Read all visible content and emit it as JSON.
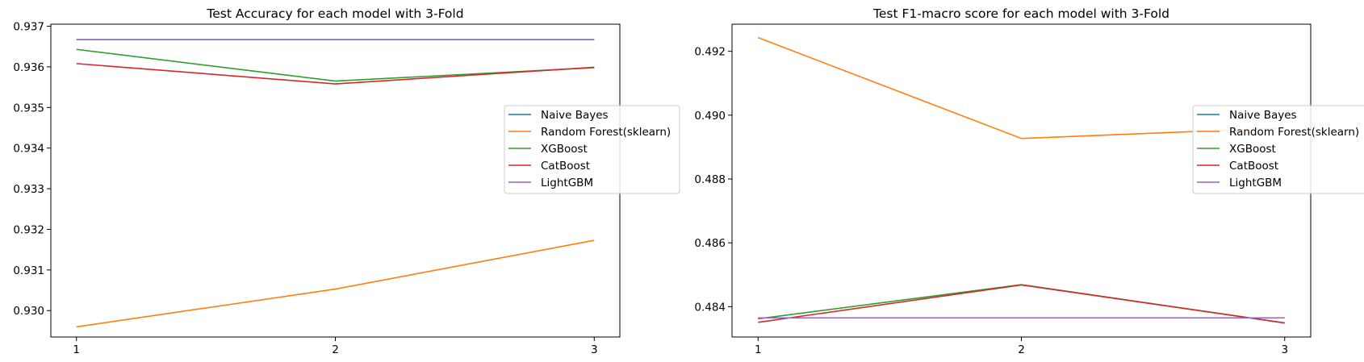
{
  "chart_data": [
    {
      "type": "line",
      "title": "Test Accuracy for each model with 3-Fold",
      "xlabel": "",
      "ylabel": "",
      "x": [
        1,
        2,
        3
      ],
      "xticks": [
        "1",
        "2",
        "3"
      ],
      "ylim": [
        0.92935,
        0.93705
      ],
      "yticks": [
        0.93,
        0.931,
        0.932,
        0.933,
        0.934,
        0.935,
        0.936,
        0.937
      ],
      "ytick_labels": [
        "0.930",
        "0.931",
        "0.932",
        "0.933",
        "0.934",
        "0.935",
        "0.936",
        "0.937"
      ],
      "legend_placement": "center-right (outside edge)",
      "grid": false,
      "series": [
        {
          "name": "Naive Bayes",
          "color": "#1f77b4",
          "values": [
            0.93667,
            0.93667,
            0.93667
          ]
        },
        {
          "name": "Random Forest(sklearn)",
          "color": "#ff7f0e",
          "values": [
            0.9296,
            0.93053,
            0.93173
          ]
        },
        {
          "name": "XGBoost",
          "color": "#2ca02c",
          "values": [
            0.93643,
            0.93565,
            0.93598
          ]
        },
        {
          "name": "CatBoost",
          "color": "#d62728",
          "values": [
            0.93608,
            0.93558,
            0.93599
          ]
        },
        {
          "name": "LightGBM",
          "color": "#9467bd",
          "values": [
            0.93667,
            0.93667,
            0.93667
          ]
        }
      ]
    },
    {
      "type": "line",
      "title": "Test F1-macro score for each model with 3-Fold",
      "xlabel": "",
      "ylabel": "",
      "x": [
        1,
        2,
        3
      ],
      "xticks": [
        "1",
        "2",
        "3"
      ],
      "ylim": [
        0.48305,
        0.49285
      ],
      "yticks": [
        0.484,
        0.486,
        0.488,
        0.49,
        0.492
      ],
      "ytick_labels": [
        "0.484",
        "0.486",
        "0.488",
        "0.490",
        "0.492"
      ],
      "legend_placement": "center-right (outside edge)",
      "grid": false,
      "series": [
        {
          "name": "Naive Bayes",
          "color": "#1f77b4",
          "values": [
            0.48365,
            0.48365,
            0.48365
          ]
        },
        {
          "name": "Random Forest(sklearn)",
          "color": "#ff7f0e",
          "values": [
            0.49243,
            0.48927,
            0.4896
          ]
        },
        {
          "name": "XGBoost",
          "color": "#2ca02c",
          "values": [
            0.48362,
            0.48469,
            0.48349
          ]
        },
        {
          "name": "CatBoost",
          "color": "#d62728",
          "values": [
            0.48351,
            0.48468,
            0.48349
          ]
        },
        {
          "name": "LightGBM",
          "color": "#9467bd",
          "values": [
            0.48365,
            0.48365,
            0.48365
          ]
        }
      ]
    }
  ]
}
